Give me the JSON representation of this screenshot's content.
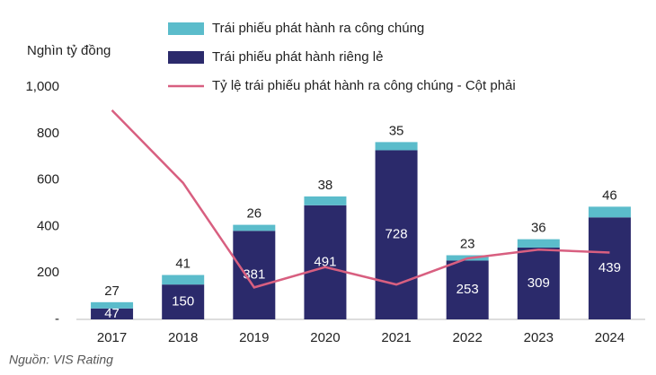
{
  "chart_data": {
    "type": "bar",
    "ylabel": "Nghìn tỷ đồng",
    "source": "Nguồn: VIS Rating",
    "categories": [
      "2017",
      "2018",
      "2019",
      "2020",
      "2021",
      "2022",
      "2023",
      "2024"
    ],
    "series": [
      {
        "name": "Trái phiếu phát hành ra công chúng",
        "type": "bar",
        "color": "#5bbccb",
        "values": [
          27,
          41,
          26,
          38,
          35,
          23,
          36,
          46
        ]
      },
      {
        "name": "Trái phiếu phát hành riêng lẻ",
        "type": "bar",
        "color": "#2b2a6b",
        "values": [
          47,
          150,
          381,
          491,
          728,
          253,
          309,
          439
        ]
      },
      {
        "name": "Tỷ lệ trái phiếu phát hành ra công chúng - Cột phải",
        "type": "line",
        "axis": "y2",
        "color": "#d85f80",
        "values": [
          36,
          23.5,
          5.5,
          9,
          6,
          10.5,
          12,
          11.5
        ]
      }
    ],
    "stacked": true,
    "ylim": [
      0,
      1000
    ],
    "yticks": [
      {
        "value": 0,
        "label": "-"
      },
      200,
      400,
      600,
      800,
      {
        "value": 1000,
        "label": "1,000"
      }
    ],
    "y2lim": [
      0,
      40
    ],
    "grid": false
  }
}
